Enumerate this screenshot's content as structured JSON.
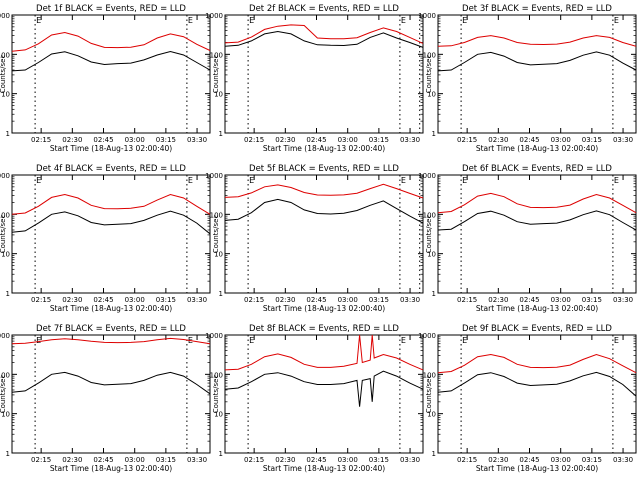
{
  "page": {
    "background": "#ffffff",
    "colors": {
      "events": "#000000",
      "lld": "#dd0000",
      "axis": "#000000"
    }
  },
  "chart_data": [
    {
      "type": "line",
      "title": "Det 1f BLACK = Events, RED = LLD",
      "xlabel": "Start Time (18-Aug-13 02:00:40)",
      "ylabel": "Counts/sec",
      "xlim": [
        12,
        42
      ],
      "ylim": [
        1,
        1000
      ],
      "yscale": "log",
      "xticks": [
        "02:15",
        "02:30",
        "02:45",
        "03:00",
        "03:15",
        "03:30"
      ],
      "yticks": [
        "1",
        "10",
        "100",
        "1000"
      ],
      "markers": [
        {
          "x": 15.5,
          "label": "E"
        },
        {
          "x": 38.5,
          "label": "E"
        }
      ],
      "series": [
        {
          "name": "Events",
          "color": "#000000",
          "x": [
            12,
            14,
            16,
            18,
            20,
            22,
            24,
            26,
            28,
            30,
            32,
            34,
            36,
            38,
            40,
            42
          ],
          "y": [
            38,
            40,
            62,
            102,
            116,
            92,
            64,
            55,
            58,
            60,
            72,
            96,
            118,
            96,
            62,
            40
          ]
        },
        {
          "name": "LLD",
          "color": "#dd0000",
          "x": [
            12,
            14,
            16,
            18,
            20,
            22,
            24,
            26,
            28,
            30,
            32,
            34,
            36,
            38,
            40,
            42
          ],
          "y": [
            120,
            130,
            185,
            310,
            360,
            290,
            190,
            150,
            148,
            152,
            175,
            260,
            330,
            280,
            180,
            125
          ]
        }
      ]
    },
    {
      "type": "line",
      "title": "Det 2f BLACK = Events, RED = LLD",
      "xlabel": "Start Time (18-Aug-13 02:00:40)",
      "ylabel": "Counts/sec",
      "xlim": [
        12,
        42
      ],
      "ylim": [
        1,
        1000
      ],
      "yscale": "log",
      "xticks": [
        "02:15",
        "02:30",
        "02:45",
        "03:00",
        "03:15",
        "03:30"
      ],
      "yticks": [
        "1",
        "10",
        "100",
        "1000"
      ],
      "markers": [
        {
          "x": 15.5,
          "label": "E"
        },
        {
          "x": 38.5,
          "label": "E"
        },
        {
          "x": 41.5,
          "label": ""
        }
      ],
      "series": [
        {
          "name": "Events",
          "color": "#000000",
          "x": [
            12,
            14,
            16,
            18,
            20,
            22,
            24,
            26,
            28,
            30,
            32,
            34,
            36,
            38,
            40,
            42
          ],
          "y": [
            160,
            170,
            220,
            330,
            380,
            330,
            220,
            175,
            170,
            168,
            180,
            270,
            350,
            260,
            200,
            150
          ]
        },
        {
          "name": "LLD",
          "color": "#dd0000",
          "x": [
            12,
            14,
            16,
            18,
            20,
            22,
            24,
            26,
            28,
            30,
            32,
            34,
            36,
            38,
            40,
            42
          ],
          "y": [
            195,
            205,
            275,
            430,
            520,
            560,
            540,
            260,
            250,
            248,
            265,
            360,
            470,
            380,
            270,
            190
          ]
        }
      ]
    },
    {
      "type": "line",
      "title": "Det 3f BLACK = Events, RED = LLD",
      "xlabel": "Start Time (18-Aug-13 02:00:40)",
      "ylabel": "Counts/sec",
      "xlim": [
        12,
        42
      ],
      "ylim": [
        1,
        1000
      ],
      "yscale": "log",
      "xticks": [
        "02:15",
        "02:30",
        "02:45",
        "03:00",
        "03:15",
        "03:30"
      ],
      "yticks": [
        "1",
        "10",
        "100",
        "1000"
      ],
      "markers": [
        {
          "x": 15.5,
          "label": "E"
        },
        {
          "x": 38.5,
          "label": "E"
        }
      ],
      "series": [
        {
          "name": "Events",
          "color": "#000000",
          "x": [
            12,
            14,
            16,
            18,
            20,
            22,
            24,
            26,
            28,
            30,
            32,
            34,
            36,
            38,
            40,
            42
          ],
          "y": [
            38,
            40,
            62,
            100,
            112,
            90,
            62,
            54,
            56,
            58,
            70,
            95,
            115,
            95,
            60,
            40
          ]
        },
        {
          "name": "LLD",
          "color": "#dd0000",
          "x": [
            12,
            14,
            16,
            18,
            20,
            22,
            24,
            26,
            28,
            30,
            32,
            34,
            36,
            38,
            40,
            42
          ],
          "y": [
            160,
            165,
            200,
            270,
            300,
            260,
            200,
            180,
            178,
            182,
            205,
            260,
            300,
            270,
            200,
            160
          ]
        }
      ]
    },
    {
      "type": "line",
      "title": "Det 4f BLACK = Events, RED = LLD",
      "xlabel": "Start Time (18-Aug-13 02:00:40)",
      "ylabel": "Counts/sec",
      "xlim": [
        12,
        42
      ],
      "ylim": [
        1,
        1000
      ],
      "yscale": "log",
      "xticks": [
        "02:15",
        "02:30",
        "02:45",
        "03:00",
        "03:15",
        "03:30"
      ],
      "yticks": [
        "1",
        "10",
        "100",
        "1000"
      ],
      "markers": [
        {
          "x": 15.5,
          "label": "E"
        },
        {
          "x": 38.5,
          "label": "E"
        }
      ],
      "series": [
        {
          "name": "Events",
          "color": "#000000",
          "x": [
            12,
            14,
            16,
            18,
            20,
            22,
            24,
            26,
            28,
            30,
            32,
            34,
            36,
            38,
            40,
            42
          ],
          "y": [
            35,
            38,
            60,
            100,
            115,
            92,
            62,
            54,
            56,
            58,
            70,
            95,
            120,
            95,
            60,
            32
          ]
        },
        {
          "name": "LLD",
          "color": "#dd0000",
          "x": [
            12,
            14,
            16,
            18,
            20,
            22,
            24,
            26,
            28,
            30,
            32,
            34,
            36,
            38,
            40,
            42
          ],
          "y": [
            100,
            108,
            160,
            270,
            320,
            260,
            170,
            140,
            138,
            142,
            160,
            230,
            320,
            260,
            160,
            100
          ]
        }
      ]
    },
    {
      "type": "line",
      "title": "Det 5f BLACK = Events, RED = LLD",
      "xlabel": "Start Time (18-Aug-13 02:00:40)",
      "ylabel": "Counts/sec",
      "xlim": [
        12,
        42
      ],
      "ylim": [
        1,
        1000
      ],
      "yscale": "log",
      "xticks": [
        "02:15",
        "02:30",
        "02:45",
        "03:00",
        "03:15",
        "03:30"
      ],
      "yticks": [
        "1",
        "10",
        "100",
        "1000"
      ],
      "markers": [
        {
          "x": 15.5,
          "label": "E"
        },
        {
          "x": 38.5,
          "label": "E"
        },
        {
          "x": 41.5,
          "label": ""
        }
      ],
      "series": [
        {
          "name": "Events",
          "color": "#000000",
          "x": [
            12,
            14,
            16,
            18,
            20,
            22,
            24,
            26,
            28,
            30,
            32,
            34,
            36,
            38,
            40,
            42
          ],
          "y": [
            70,
            75,
            110,
            200,
            240,
            200,
            130,
            105,
            102,
            106,
            125,
            170,
            220,
            140,
            90,
            60
          ]
        },
        {
          "name": "LLD",
          "color": "#dd0000",
          "x": [
            12,
            14,
            16,
            18,
            20,
            22,
            24,
            26,
            28,
            30,
            32,
            34,
            36,
            38,
            40,
            42
          ],
          "y": [
            270,
            280,
            350,
            500,
            560,
            480,
            360,
            310,
            305,
            312,
            345,
            450,
            580,
            450,
            340,
            260
          ]
        }
      ]
    },
    {
      "type": "line",
      "title": "Det 6f BLACK = Events, RED = LLD",
      "xlabel": "Start Time (18-Aug-13 02:00:40)",
      "ylabel": "Counts/sec",
      "xlim": [
        12,
        42
      ],
      "ylim": [
        1,
        1000
      ],
      "yscale": "log",
      "xticks": [
        "02:15",
        "02:30",
        "02:45",
        "03:00",
        "03:15",
        "03:30"
      ],
      "yticks": [
        "1",
        "10",
        "100",
        "1000"
      ],
      "markers": [
        {
          "x": 15.5,
          "label": "E"
        },
        {
          "x": 38.5,
          "label": "E"
        }
      ],
      "series": [
        {
          "name": "Events",
          "color": "#000000",
          "x": [
            12,
            14,
            16,
            18,
            20,
            22,
            24,
            26,
            28,
            30,
            32,
            34,
            36,
            38,
            40,
            42
          ],
          "y": [
            40,
            42,
            65,
            105,
            120,
            95,
            65,
            56,
            58,
            60,
            72,
            98,
            122,
            98,
            62,
            40
          ]
        },
        {
          "name": "LLD",
          "color": "#dd0000",
          "x": [
            12,
            14,
            16,
            18,
            20,
            22,
            24,
            26,
            28,
            30,
            32,
            34,
            36,
            38,
            40,
            42
          ],
          "y": [
            110,
            118,
            175,
            290,
            340,
            280,
            185,
            150,
            148,
            152,
            172,
            245,
            320,
            260,
            170,
            110
          ]
        }
      ]
    },
    {
      "type": "line",
      "title": "Det 7f BLACK = Events, RED = LLD",
      "xlabel": "Start Time (18-Aug-13 02:00:40)",
      "ylabel": "Counts/sec",
      "xlim": [
        12,
        42
      ],
      "ylim": [
        1,
        1000
      ],
      "yscale": "log",
      "xticks": [
        "02:15",
        "02:30",
        "02:45",
        "03:00",
        "03:15",
        "03:30"
      ],
      "yticks": [
        "1",
        "10",
        "100",
        "1000"
      ],
      "markers": [
        {
          "x": 15.5,
          "label": "E"
        },
        {
          "x": 38.5,
          "label": "E"
        }
      ],
      "series": [
        {
          "name": "Events",
          "color": "#000000",
          "x": [
            12,
            14,
            16,
            18,
            20,
            22,
            24,
            26,
            28,
            30,
            32,
            34,
            36,
            38,
            40,
            42
          ],
          "y": [
            35,
            38,
            60,
            100,
            112,
            90,
            62,
            54,
            56,
            58,
            70,
            95,
            112,
            90,
            55,
            32
          ]
        },
        {
          "name": "LLD",
          "color": "#dd0000",
          "x": [
            12,
            14,
            16,
            18,
            20,
            22,
            24,
            26,
            28,
            30,
            32,
            34,
            36,
            38,
            40,
            42
          ],
          "y": [
            600,
            620,
            680,
            760,
            800,
            760,
            690,
            650,
            640,
            650,
            680,
            760,
            820,
            770,
            680,
            600
          ]
        }
      ]
    },
    {
      "type": "line",
      "title": "Det 8f BLACK = Events, RED = LLD",
      "xlabel": "Start Time (18-Aug-13 02:00:40)",
      "ylabel": "Counts/sec",
      "xlim": [
        12,
        42
      ],
      "ylim": [
        1,
        1000
      ],
      "yscale": "log",
      "xticks": [
        "02:15",
        "02:30",
        "02:45",
        "03:00",
        "03:15",
        "03:30"
      ],
      "yticks": [
        "1",
        "10",
        "100",
        "1000"
      ],
      "markers": [
        {
          "x": 15.5,
          "label": "E"
        },
        {
          "x": 38.5,
          "label": "E"
        }
      ],
      "series": [
        {
          "name": "Events",
          "color": "#000000",
          "x": [
            12,
            14,
            16,
            18,
            20,
            22,
            24,
            26,
            28,
            30,
            32,
            32.4,
            32.8,
            34,
            34.3,
            34.6,
            36,
            38,
            40,
            42
          ],
          "y": [
            42,
            45,
            65,
            100,
            110,
            90,
            65,
            55,
            55,
            58,
            70,
            15,
            70,
            78,
            20,
            90,
            120,
            90,
            60,
            42
          ]
        },
        {
          "name": "LLD",
          "color": "#dd0000",
          "x": [
            12,
            14,
            16,
            18,
            20,
            22,
            24,
            26,
            28,
            30,
            32,
            32.4,
            32.8,
            34,
            34.3,
            34.6,
            36,
            38,
            40,
            42
          ],
          "y": [
            130,
            135,
            180,
            280,
            330,
            270,
            180,
            150,
            150,
            160,
            190,
            1000,
            200,
            230,
            1000,
            260,
            320,
            260,
            180,
            130
          ]
        }
      ]
    },
    {
      "type": "line",
      "title": "Det 9f BLACK = Events, RED = LLD",
      "xlabel": "Start Time (18-Aug-13 02:00:40)",
      "ylabel": "Counts/sec",
      "xlim": [
        12,
        42
      ],
      "ylim": [
        1,
        1000
      ],
      "yscale": "log",
      "xticks": [
        "02:15",
        "02:30",
        "02:45",
        "03:00",
        "03:15",
        "03:30"
      ],
      "yticks": [
        "1",
        "10",
        "100",
        "1000"
      ],
      "markers": [
        {
          "x": 15.5,
          "label": "E"
        },
        {
          "x": 38.5,
          "label": "E"
        }
      ],
      "series": [
        {
          "name": "Events",
          "color": "#000000",
          "x": [
            12,
            14,
            16,
            18,
            20,
            22,
            24,
            26,
            28,
            30,
            32,
            34,
            36,
            38,
            40,
            42
          ],
          "y": [
            35,
            38,
            60,
            98,
            110,
            88,
            60,
            52,
            54,
            56,
            68,
            92,
            112,
            88,
            55,
            28
          ]
        },
        {
          "name": "LLD",
          "color": "#dd0000",
          "x": [
            12,
            14,
            16,
            18,
            20,
            22,
            24,
            26,
            28,
            30,
            32,
            34,
            36,
            38,
            40,
            42
          ],
          "y": [
            110,
            118,
            170,
            280,
            320,
            270,
            180,
            150,
            148,
            152,
            172,
            240,
            320,
            250,
            165,
            110
          ]
        }
      ]
    }
  ]
}
